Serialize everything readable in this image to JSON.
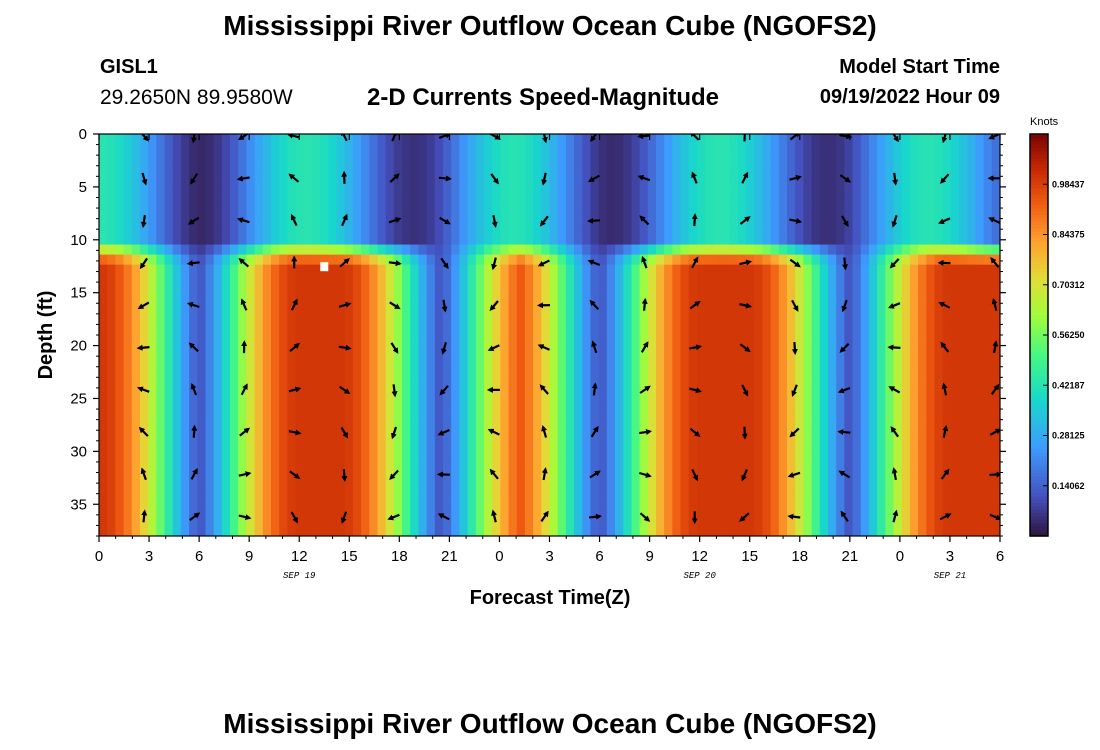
{
  "header": {
    "title": "Mississippi River Outflow Ocean Cube (NGOFS2)",
    "station": "GISL1",
    "coordinates": "29.2650N  89.9580W",
    "plot_title": "2-D Currents Speed-Magnitude",
    "start_label": "Model Start Time",
    "start_value": "09/19/2022 Hour 09"
  },
  "footer": {
    "title": "Mississippi River Outflow Ocean Cube (NGOFS2)"
  },
  "chart_data": {
    "type": "heatmap",
    "title": "2-D Currents Speed-Magnitude",
    "xlabel": "Forecast Time(Z)",
    "ylabel": "Depth (ft)",
    "x_range_hours": [
      0,
      54
    ],
    "y_range_ft": [
      0,
      38
    ],
    "x_ticks": [
      {
        "h": 0,
        "label": "0"
      },
      {
        "h": 3,
        "label": "3"
      },
      {
        "h": 6,
        "label": "6"
      },
      {
        "h": 9,
        "label": "9"
      },
      {
        "h": 12,
        "label": "12"
      },
      {
        "h": 15,
        "label": "15"
      },
      {
        "h": 18,
        "label": "18"
      },
      {
        "h": 21,
        "label": "21"
      },
      {
        "h": 24,
        "label": "0"
      },
      {
        "h": 27,
        "label": "3"
      },
      {
        "h": 30,
        "label": "6"
      },
      {
        "h": 33,
        "label": "9"
      },
      {
        "h": 36,
        "label": "12"
      },
      {
        "h": 39,
        "label": "15"
      },
      {
        "h": 42,
        "label": "18"
      },
      {
        "h": 45,
        "label": "21"
      },
      {
        "h": 48,
        "label": "0"
      },
      {
        "h": 51,
        "label": "3"
      },
      {
        "h": 54,
        "label": "6"
      }
    ],
    "y_ticks": [
      0,
      5,
      10,
      15,
      20,
      25,
      30,
      35
    ],
    "date_labels": [
      {
        "h": 12,
        "label": "SEP 19"
      },
      {
        "h": 36,
        "label": "SEP 20"
      },
      {
        "h": 51,
        "label": "SEP 21"
      }
    ],
    "colorbar": {
      "unit": "Knots",
      "min": 0,
      "max": 1.125,
      "ticks": [
        0.14062,
        0.28125,
        0.42187,
        0.5625,
        0.70312,
        0.84375,
        0.98437
      ],
      "tick_labels": [
        "0.14062",
        "0.28125",
        "0.42187",
        "0.56250",
        "0.70312",
        "0.84375",
        "0.98437"
      ]
    },
    "speed_pattern": {
      "slack_hours": [
        6,
        20.5,
        30,
        45
      ],
      "peak_hours": [
        1,
        13.5,
        27,
        40,
        51
      ],
      "upper_layer_depth_ft": 10,
      "max_speed_knots": 1.0,
      "upper_layer_speed_knots": 0.38
    },
    "arrow_hours": [
      3,
      6,
      9,
      12,
      15,
      18,
      21,
      24,
      27,
      30,
      33,
      36,
      39,
      42,
      45,
      48,
      51,
      54
    ],
    "arrow_depths_ft": [
      0,
      4,
      8,
      12,
      16,
      20,
      24,
      28,
      32,
      36
    ],
    "marker": {
      "hour": 13.5,
      "depth_ft": 12.5
    }
  }
}
